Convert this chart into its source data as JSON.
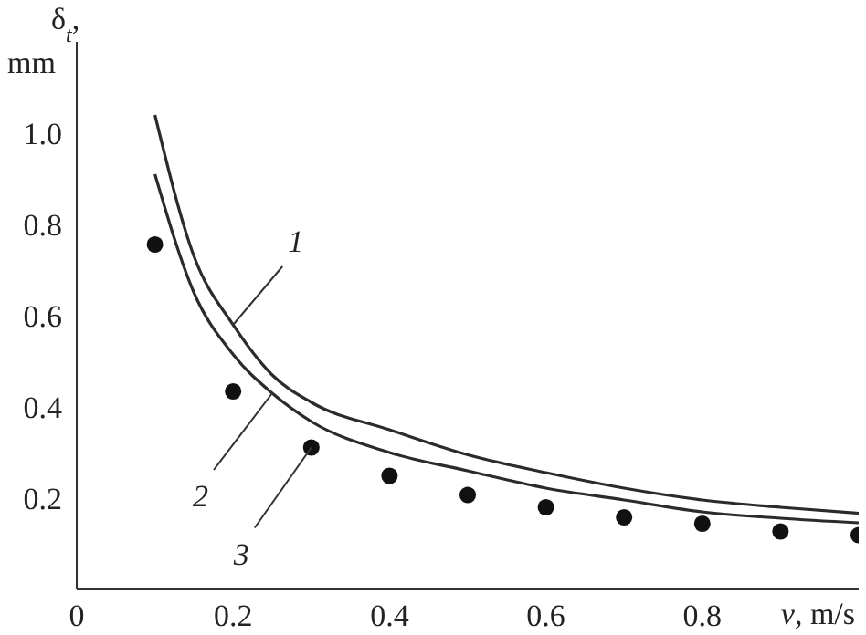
{
  "chart_data": {
    "type": "line",
    "xlabel": "v, m/s",
    "ylabel": "δ$_{t}$, mm",
    "xlim": [
      0,
      1
    ],
    "ylim": [
      0,
      1.2
    ],
    "xticks": [
      0,
      0.2,
      0.4,
      0.6,
      0.8
    ],
    "yticks": [
      0.2,
      0.4,
      0.6,
      0.8,
      {
        "value": 1,
        "label": "1.0"
      }
    ],
    "line_style": "solid",
    "series": [
      {
        "color": "#2b2b2b",
        "marker": "none",
        "x": [
          0.1,
          0.15,
          0.2,
          0.25,
          0.3,
          0.4,
          0.5,
          0.6,
          0.7,
          0.8,
          0.9,
          1.0
        ],
        "values": [
          1.04,
          0.73,
          0.58,
          0.47,
          0.41,
          0.35,
          0.295,
          0.256,
          0.222,
          0.196,
          0.18,
          0.167
        ]
      },
      {
        "color": "#2b2b2b",
        "marker": "none",
        "x": [
          0.1,
          0.15,
          0.2,
          0.25,
          0.3,
          0.4,
          0.5,
          0.6,
          0.7,
          0.8,
          0.9,
          1.0
        ],
        "values": [
          0.91,
          0.65,
          0.515,
          0.43,
          0.368,
          0.3,
          0.26,
          0.222,
          0.196,
          0.17,
          0.156,
          0.146
        ]
      },
      {
        "type": "scatter",
        "color": "#111111",
        "marker": "circle",
        "x": [
          0.1,
          0.2,
          0.3,
          0.4,
          0.5,
          0.6,
          0.7,
          0.8,
          0.9,
          1.0
        ],
        "values": [
          0.756,
          0.434,
          0.311,
          0.249,
          0.207,
          0.18,
          0.158,
          0.144,
          0.127,
          0.119
        ]
      }
    ],
    "annotations": [
      {
        "text": "1",
        "x": 0.2,
        "y": 0.58
      },
      {
        "text": "2",
        "x": 0.25,
        "y": 0.43
      },
      {
        "text": "3",
        "x": 0.3,
        "y": 0.311
      }
    ]
  }
}
